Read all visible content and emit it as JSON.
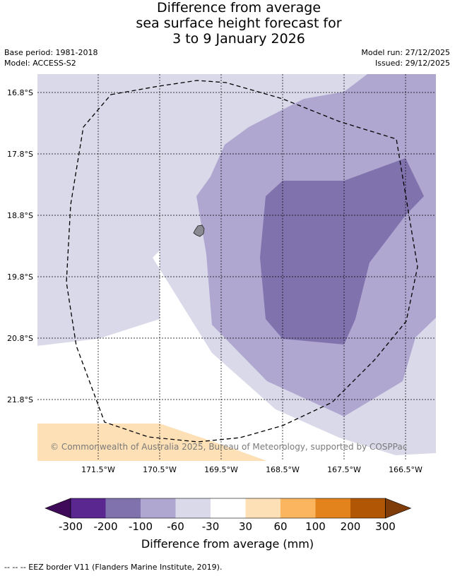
{
  "header": {
    "title_line1": "Difference from average",
    "title_line2": "sea surface height forecast for",
    "title_line3": "3 to 9 January 2026",
    "base_period": "Base period: 1981-2018",
    "model": "Model: ACCESS-S2",
    "model_run": "Model run: 27/12/2025",
    "issued": "Issued: 29/12/2025"
  },
  "map": {
    "lat_labels": [
      "16.8°S",
      "17.8°S",
      "18.8°S",
      "19.8°S",
      "20.8°S",
      "21.8°S"
    ],
    "lon_labels": [
      "171.5°W",
      "170.5°W",
      "169.5°W",
      "168.5°W",
      "167.5°W",
      "166.5°W"
    ],
    "attribution": "© Commonwealth of Australia 2025, Bureau of Meteorology, supported by COSPPac"
  },
  "legend": {
    "title": "Difference from average (mm)",
    "tick_labels": [
      "-300",
      "-200",
      "-100",
      "-60",
      "-30",
      "30",
      "60",
      "100",
      "200",
      "300"
    ],
    "colors": [
      "#3f0a5a",
      "#5a2690",
      "#7f72ad",
      "#afa7d0",
      "#d9d9ea",
      "#ffffff",
      "#fde0b5",
      "#fbb55f",
      "#e2831b",
      "#b15605",
      "#7f3b08"
    ]
  },
  "footer": {
    "eez_note": "--  --  -- EEZ border V11 (Flanders Marine Institute, 2019)."
  },
  "colors": {
    "island": "#8a8a92"
  }
}
